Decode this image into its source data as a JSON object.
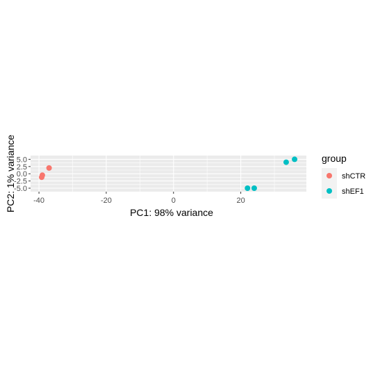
{
  "chart_data": {
    "type": "scatter",
    "xlabel": "PC1: 98% variance",
    "ylabel": "PC2: 1% variance",
    "xlim": [
      -42.5,
      39.5
    ],
    "ylim": [
      -6.2,
      6.3
    ],
    "x_ticks": [
      -40,
      -20,
      0,
      20
    ],
    "x_tick_labels": [
      "-40",
      "-20",
      "0",
      "20"
    ],
    "y_ticks": [
      5.0,
      2.5,
      0.0,
      -2.5,
      -5.0
    ],
    "y_tick_labels": [
      "5.0",
      "2.5",
      "0.0",
      "-2.5",
      "-5.0"
    ],
    "grid": true,
    "panel_background": "#ebebeb",
    "legend": {
      "title": "group",
      "placement": "right",
      "entries": [
        {
          "label": "shCTR",
          "color": "#f8766d"
        },
        {
          "label": "shEF1",
          "color": "#00bfc4"
        }
      ]
    },
    "series": [
      {
        "name": "shCTR",
        "color": "#f8766d",
        "points": [
          {
            "x": -39.0,
            "y": -0.5
          },
          {
            "x": -39.2,
            "y": -1.2
          },
          {
            "x": -37.0,
            "y": 2.0
          }
        ]
      },
      {
        "name": "shEF1",
        "color": "#00bfc4",
        "points": [
          {
            "x": 22.0,
            "y": -5.0
          },
          {
            "x": 24.0,
            "y": -5.0
          },
          {
            "x": 33.5,
            "y": 4.0
          },
          {
            "x": 36.0,
            "y": 5.0
          }
        ]
      }
    ]
  }
}
